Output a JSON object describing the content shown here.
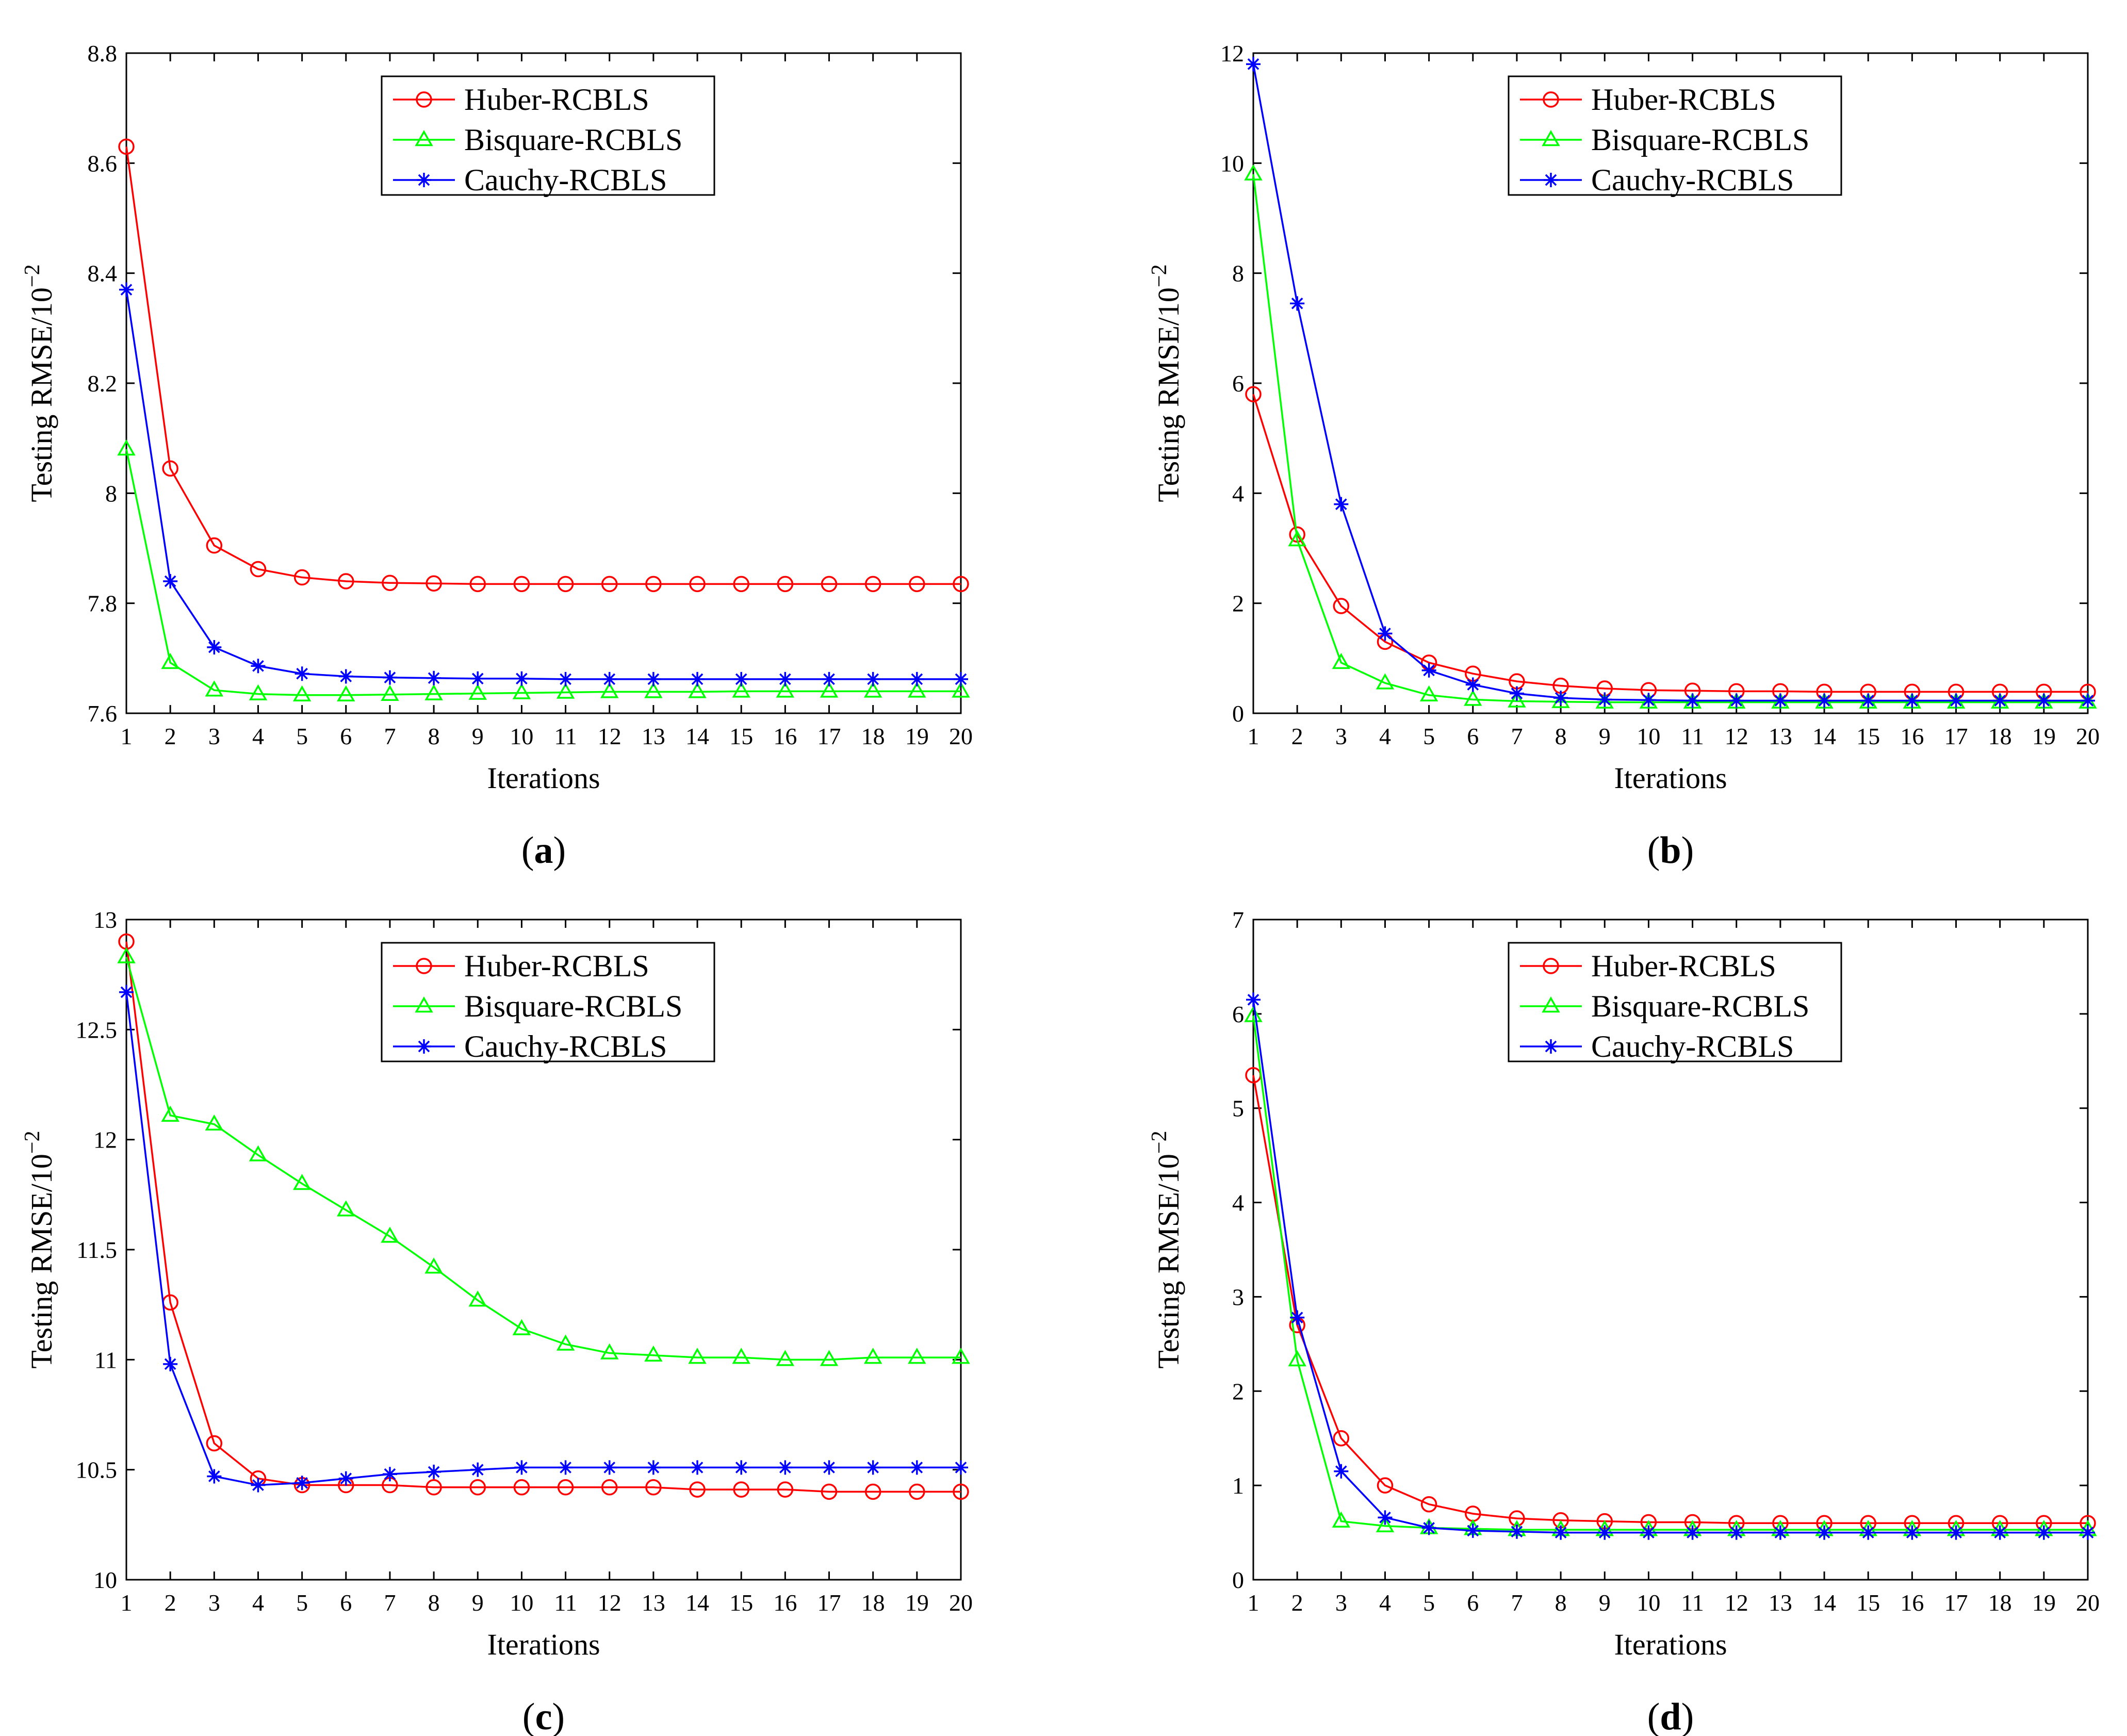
{
  "chart_data": [
    {
      "type": "line",
      "panel_label": "a",
      "xlabel": "Iterations",
      "ylabel": "Testing RMSE/10",
      "ylabel_exp": "−2",
      "xlim": [
        1,
        20
      ],
      "ylim": [
        7.6,
        8.8
      ],
      "yticks": [
        7.6,
        7.8,
        8,
        8.2,
        8.4,
        8.6,
        8.8
      ],
      "x": [
        1,
        2,
        3,
        4,
        5,
        6,
        7,
        8,
        9,
        10,
        11,
        12,
        13,
        14,
        15,
        16,
        17,
        18,
        19,
        20
      ],
      "legend": "top-center",
      "series": [
        {
          "name": "Huber-RCBLS",
          "color": "#ff0000",
          "marker": "circle",
          "values": [
            8.63,
            8.045,
            7.905,
            7.862,
            7.847,
            7.84,
            7.837,
            7.836,
            7.835,
            7.835,
            7.835,
            7.835,
            7.835,
            7.835,
            7.835,
            7.835,
            7.835,
            7.835,
            7.835,
            7.835
          ]
        },
        {
          "name": "Bisquare-RCBLS",
          "color": "#00ff00",
          "marker": "triangle",
          "values": [
            8.08,
            7.692,
            7.642,
            7.635,
            7.633,
            7.633,
            7.634,
            7.635,
            7.636,
            7.637,
            7.638,
            7.639,
            7.639,
            7.639,
            7.64,
            7.64,
            7.64,
            7.64,
            7.64,
            7.64
          ]
        },
        {
          "name": "Cauchy-RCBLS",
          "color": "#0000ff",
          "marker": "star",
          "values": [
            8.37,
            7.84,
            7.72,
            7.686,
            7.672,
            7.667,
            7.665,
            7.664,
            7.663,
            7.663,
            7.662,
            7.662,
            7.662,
            7.662,
            7.662,
            7.662,
            7.662,
            7.662,
            7.662,
            7.662
          ]
        }
      ]
    },
    {
      "type": "line",
      "panel_label": "b",
      "xlabel": "Iterations",
      "ylabel": "Testing RMSE/10",
      "ylabel_exp": "−2",
      "xlim": [
        1,
        20
      ],
      "ylim": [
        0,
        12
      ],
      "yticks": [
        0,
        2,
        4,
        6,
        8,
        10,
        12
      ],
      "x": [
        1,
        2,
        3,
        4,
        5,
        6,
        7,
        8,
        9,
        10,
        11,
        12,
        13,
        14,
        15,
        16,
        17,
        18,
        19,
        20
      ],
      "legend": "top-center",
      "series": [
        {
          "name": "Huber-RCBLS",
          "color": "#ff0000",
          "marker": "circle",
          "values": [
            5.8,
            3.25,
            1.95,
            1.3,
            0.92,
            0.72,
            0.58,
            0.5,
            0.45,
            0.42,
            0.41,
            0.4,
            0.4,
            0.39,
            0.39,
            0.39,
            0.39,
            0.39,
            0.39,
            0.39
          ]
        },
        {
          "name": "Bisquare-RCBLS",
          "color": "#00ff00",
          "marker": "triangle",
          "values": [
            9.8,
            3.15,
            0.92,
            0.55,
            0.33,
            0.25,
            0.22,
            0.21,
            0.2,
            0.2,
            0.2,
            0.2,
            0.2,
            0.2,
            0.2,
            0.2,
            0.2,
            0.2,
            0.2,
            0.2
          ]
        },
        {
          "name": "Cauchy-RCBLS",
          "color": "#0000ff",
          "marker": "star",
          "values": [
            11.8,
            7.45,
            3.8,
            1.45,
            0.78,
            0.52,
            0.36,
            0.28,
            0.25,
            0.24,
            0.23,
            0.23,
            0.23,
            0.23,
            0.23,
            0.23,
            0.23,
            0.23,
            0.23,
            0.23
          ]
        }
      ]
    },
    {
      "type": "line",
      "panel_label": "c",
      "xlabel": "Iterations",
      "ylabel": "Testing RMSE/10",
      "ylabel_exp": "−2",
      "xlim": [
        1,
        20
      ],
      "ylim": [
        10,
        13
      ],
      "yticks": [
        10,
        10.5,
        11,
        11.5,
        12,
        12.5,
        13
      ],
      "x": [
        1,
        2,
        3,
        4,
        5,
        6,
        7,
        8,
        9,
        10,
        11,
        12,
        13,
        14,
        15,
        16,
        17,
        18,
        19,
        20
      ],
      "legend": "top-center",
      "series": [
        {
          "name": "Huber-RCBLS",
          "color": "#ff0000",
          "marker": "circle",
          "values": [
            12.9,
            11.26,
            10.62,
            10.46,
            10.43,
            10.43,
            10.43,
            10.42,
            10.42,
            10.42,
            10.42,
            10.42,
            10.42,
            10.41,
            10.41,
            10.41,
            10.4,
            10.4,
            10.4,
            10.4
          ]
        },
        {
          "name": "Bisquare-RCBLS",
          "color": "#00ff00",
          "marker": "triangle",
          "values": [
            12.83,
            12.11,
            12.07,
            11.93,
            11.8,
            11.68,
            11.56,
            11.42,
            11.27,
            11.14,
            11.07,
            11.03,
            11.02,
            11.01,
            11.01,
            11.0,
            11.0,
            11.01,
            11.01,
            11.01
          ]
        },
        {
          "name": "Cauchy-RCBLS",
          "color": "#0000ff",
          "marker": "star",
          "values": [
            12.67,
            10.98,
            10.47,
            10.43,
            10.44,
            10.46,
            10.48,
            10.49,
            10.5,
            10.51,
            10.51,
            10.51,
            10.51,
            10.51,
            10.51,
            10.51,
            10.51,
            10.51,
            10.51,
            10.51
          ]
        }
      ]
    },
    {
      "type": "line",
      "panel_label": "d",
      "xlabel": "Iterations",
      "ylabel": "Testing RMSE/10",
      "ylabel_exp": "−2",
      "xlim": [
        1,
        20
      ],
      "ylim": [
        0,
        7
      ],
      "yticks": [
        0,
        1,
        2,
        3,
        4,
        5,
        6,
        7
      ],
      "x": [
        1,
        2,
        3,
        4,
        5,
        6,
        7,
        8,
        9,
        10,
        11,
        12,
        13,
        14,
        15,
        16,
        17,
        18,
        19,
        20
      ],
      "legend": "top-center",
      "series": [
        {
          "name": "Huber-RCBLS",
          "color": "#ff0000",
          "marker": "circle",
          "values": [
            5.35,
            2.7,
            1.5,
            1.0,
            0.8,
            0.7,
            0.65,
            0.63,
            0.62,
            0.61,
            0.61,
            0.6,
            0.6,
            0.6,
            0.6,
            0.6,
            0.6,
            0.6,
            0.6,
            0.6
          ]
        },
        {
          "name": "Bisquare-RCBLS",
          "color": "#00ff00",
          "marker": "triangle",
          "values": [
            5.98,
            2.33,
            0.62,
            0.57,
            0.55,
            0.54,
            0.53,
            0.53,
            0.53,
            0.53,
            0.53,
            0.53,
            0.53,
            0.53,
            0.53,
            0.53,
            0.53,
            0.53,
            0.53,
            0.53
          ]
        },
        {
          "name": "Cauchy-RCBLS",
          "color": "#0000ff",
          "marker": "star",
          "values": [
            6.15,
            2.78,
            1.15,
            0.66,
            0.55,
            0.52,
            0.51,
            0.5,
            0.5,
            0.5,
            0.5,
            0.5,
            0.5,
            0.5,
            0.5,
            0.5,
            0.5,
            0.5,
            0.5,
            0.5
          ]
        }
      ]
    }
  ]
}
